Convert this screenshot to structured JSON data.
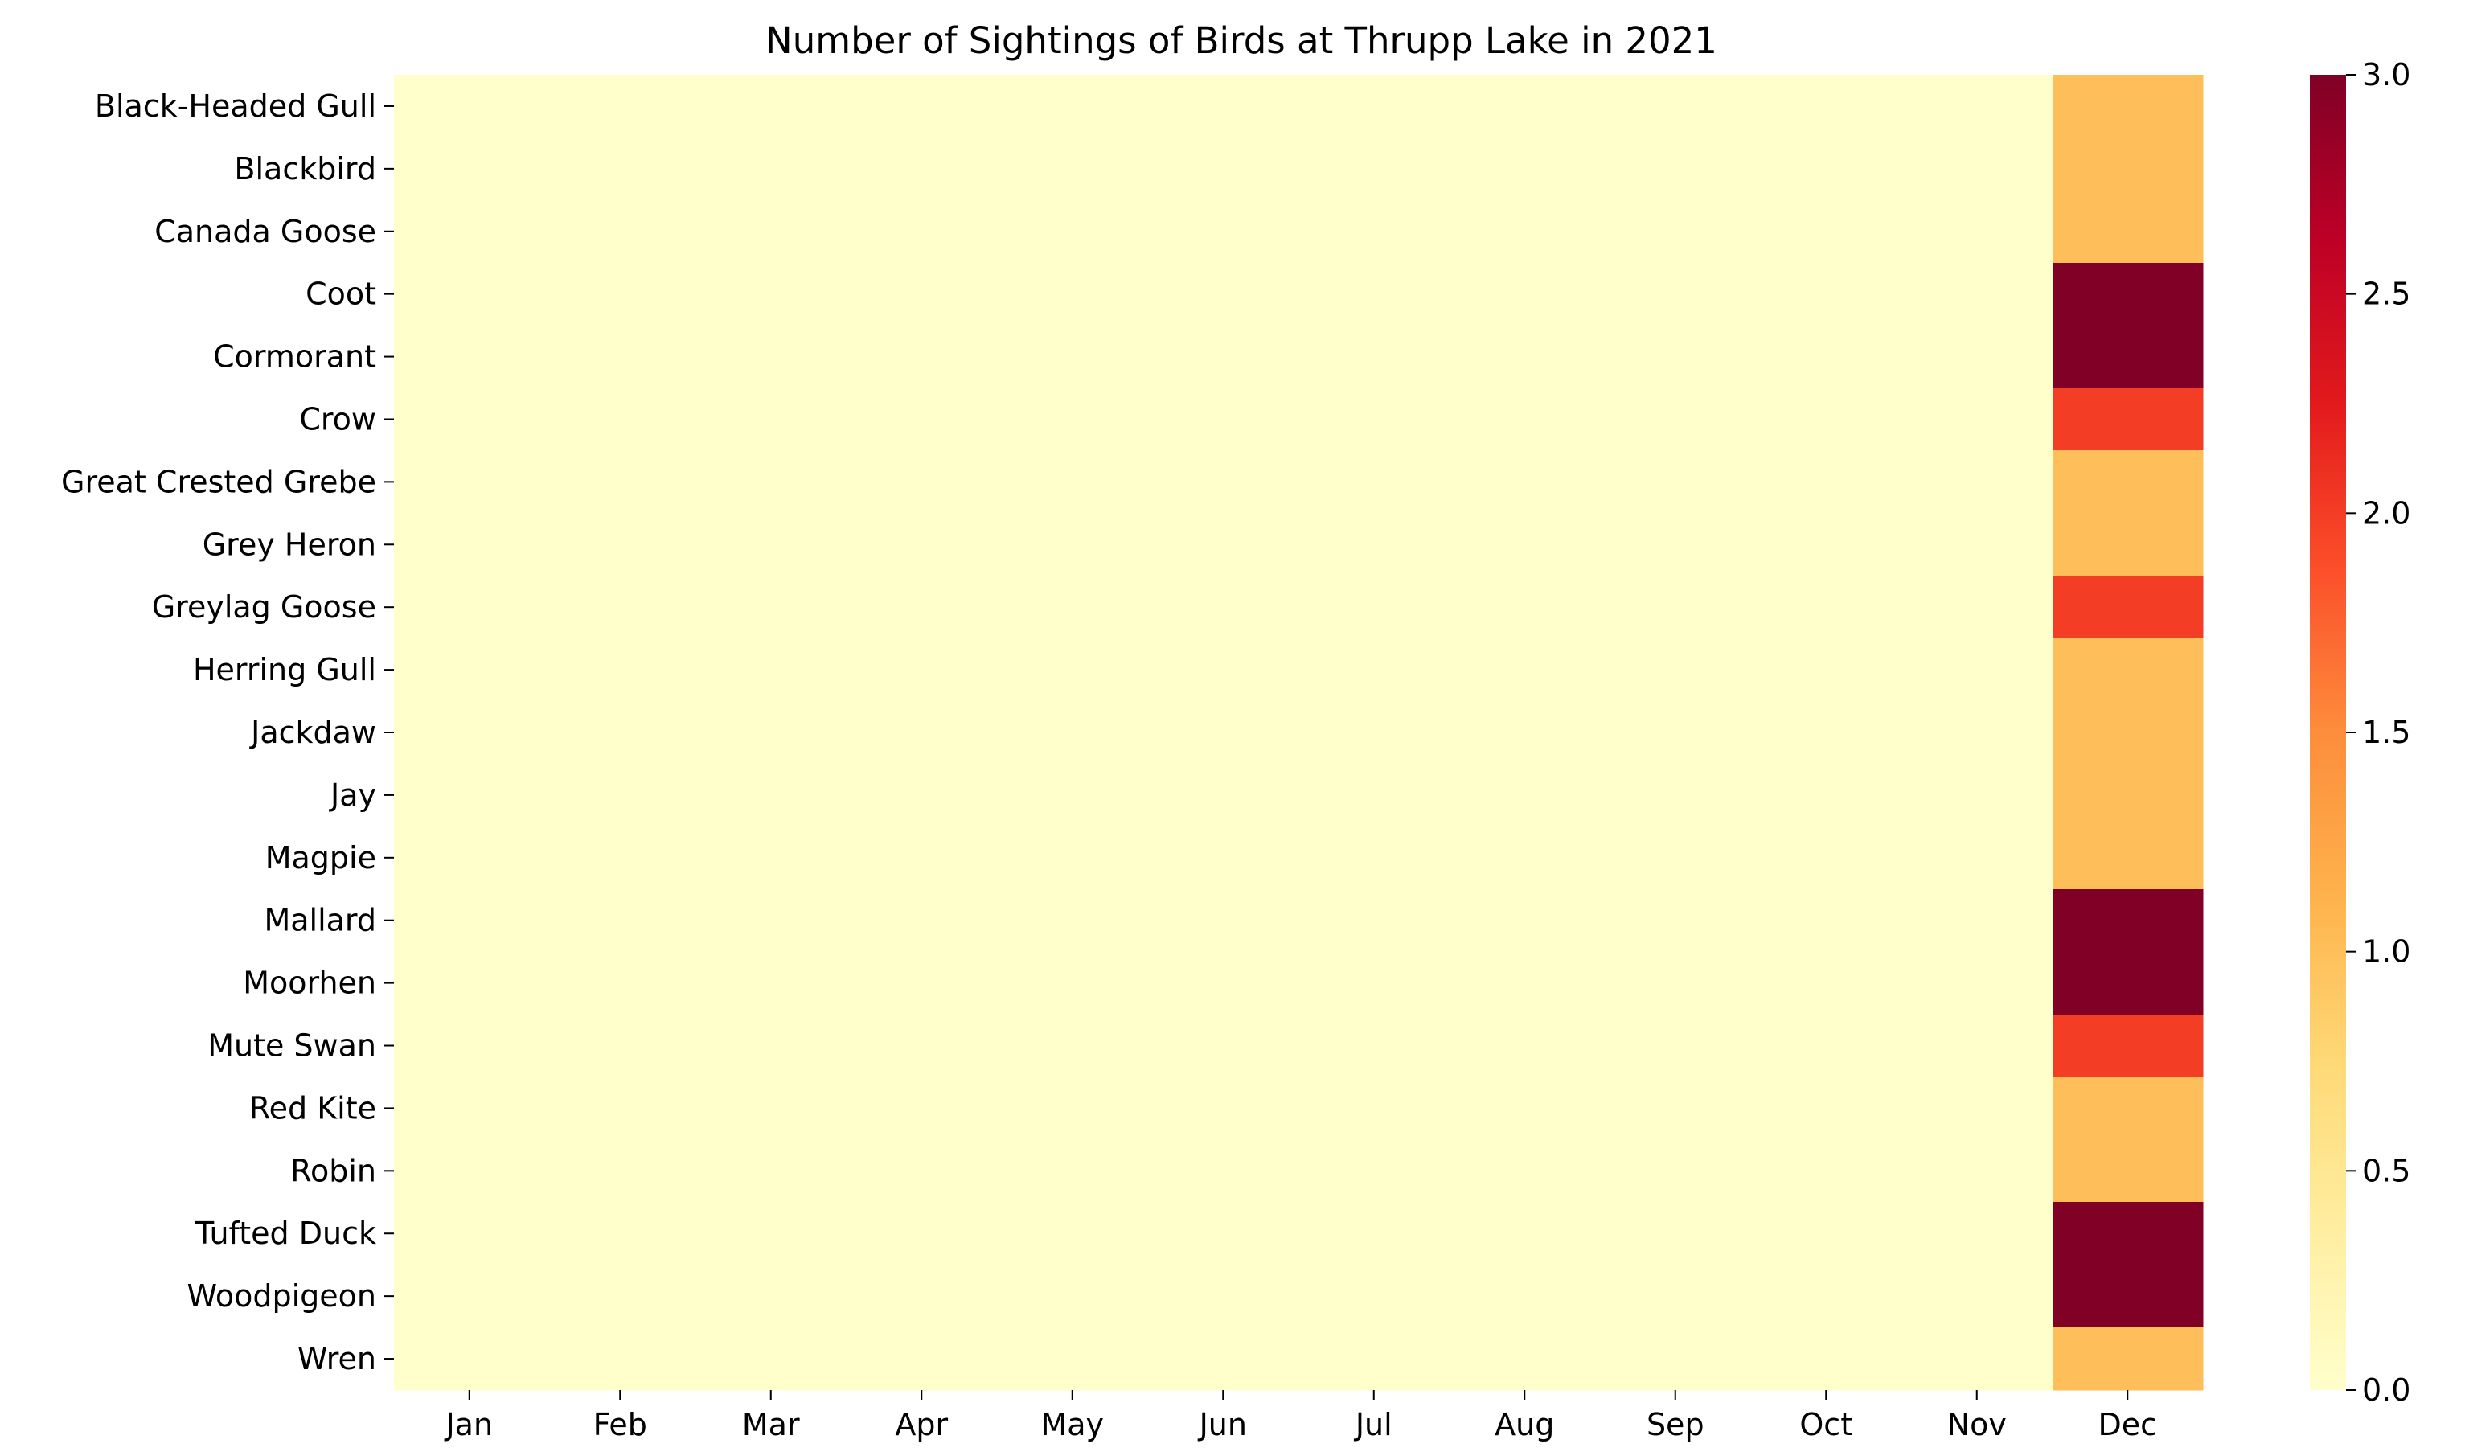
{
  "chart_data": {
    "type": "heatmap",
    "title": "Number of Sightings of Birds at Thrupp Lake in 2021",
    "xlabel": "",
    "ylabel": "",
    "x_categories": [
      "Jan",
      "Feb",
      "Mar",
      "Apr",
      "May",
      "Jun",
      "Jul",
      "Aug",
      "Sep",
      "Oct",
      "Nov",
      "Dec"
    ],
    "y_categories": [
      "Black-Headed Gull",
      "Blackbird",
      "Canada Goose",
      "Coot",
      "Cormorant",
      "Crow",
      "Great Crested Grebe",
      "Grey Heron",
      "Greylag Goose",
      "Herring Gull",
      "Jackdaw",
      "Jay",
      "Magpie",
      "Mallard",
      "Moorhen",
      "Mute Swan",
      "Red Kite",
      "Robin",
      "Tufted Duck",
      "Woodpigeon",
      "Wren"
    ],
    "values": [
      [
        0,
        0,
        0,
        0,
        0,
        0,
        0,
        0,
        0,
        0,
        0,
        1
      ],
      [
        0,
        0,
        0,
        0,
        0,
        0,
        0,
        0,
        0,
        0,
        0,
        1
      ],
      [
        0,
        0,
        0,
        0,
        0,
        0,
        0,
        0,
        0,
        0,
        0,
        1
      ],
      [
        0,
        0,
        0,
        0,
        0,
        0,
        0,
        0,
        0,
        0,
        0,
        3
      ],
      [
        0,
        0,
        0,
        0,
        0,
        0,
        0,
        0,
        0,
        0,
        0,
        3
      ],
      [
        0,
        0,
        0,
        0,
        0,
        0,
        0,
        0,
        0,
        0,
        0,
        2
      ],
      [
        0,
        0,
        0,
        0,
        0,
        0,
        0,
        0,
        0,
        0,
        0,
        1
      ],
      [
        0,
        0,
        0,
        0,
        0,
        0,
        0,
        0,
        0,
        0,
        0,
        1
      ],
      [
        0,
        0,
        0,
        0,
        0,
        0,
        0,
        0,
        0,
        0,
        0,
        2
      ],
      [
        0,
        0,
        0,
        0,
        0,
        0,
        0,
        0,
        0,
        0,
        0,
        1
      ],
      [
        0,
        0,
        0,
        0,
        0,
        0,
        0,
        0,
        0,
        0,
        0,
        1
      ],
      [
        0,
        0,
        0,
        0,
        0,
        0,
        0,
        0,
        0,
        0,
        0,
        1
      ],
      [
        0,
        0,
        0,
        0,
        0,
        0,
        0,
        0,
        0,
        0,
        0,
        1
      ],
      [
        0,
        0,
        0,
        0,
        0,
        0,
        0,
        0,
        0,
        0,
        0,
        3
      ],
      [
        0,
        0,
        0,
        0,
        0,
        0,
        0,
        0,
        0,
        0,
        0,
        3
      ],
      [
        0,
        0,
        0,
        0,
        0,
        0,
        0,
        0,
        0,
        0,
        0,
        2
      ],
      [
        0,
        0,
        0,
        0,
        0,
        0,
        0,
        0,
        0,
        0,
        0,
        1
      ],
      [
        0,
        0,
        0,
        0,
        0,
        0,
        0,
        0,
        0,
        0,
        0,
        1
      ],
      [
        0,
        0,
        0,
        0,
        0,
        0,
        0,
        0,
        0,
        0,
        0,
        3
      ],
      [
        0,
        0,
        0,
        0,
        0,
        0,
        0,
        0,
        0,
        0,
        0,
        3
      ],
      [
        0,
        0,
        0,
        0,
        0,
        0,
        0,
        0,
        0,
        0,
        0,
        1
      ]
    ],
    "colorbar": {
      "min": 0,
      "max": 3,
      "ticks": [
        0,
        0.5,
        1,
        1.5,
        2,
        2.5,
        3
      ],
      "tick_labels": [
        "0.0",
        "0.5",
        "1.0",
        "1.5",
        "2.0",
        "2.5",
        "3.0"
      ],
      "colormap": "YlOrRd",
      "stops": [
        "#ffffcc",
        "#ffeda0",
        "#fed976",
        "#feb24c",
        "#fd8d3c",
        "#fc4e2a",
        "#e31a1c",
        "#bd0026",
        "#800026"
      ]
    },
    "grid": false,
    "legend": "colorbar-right"
  }
}
